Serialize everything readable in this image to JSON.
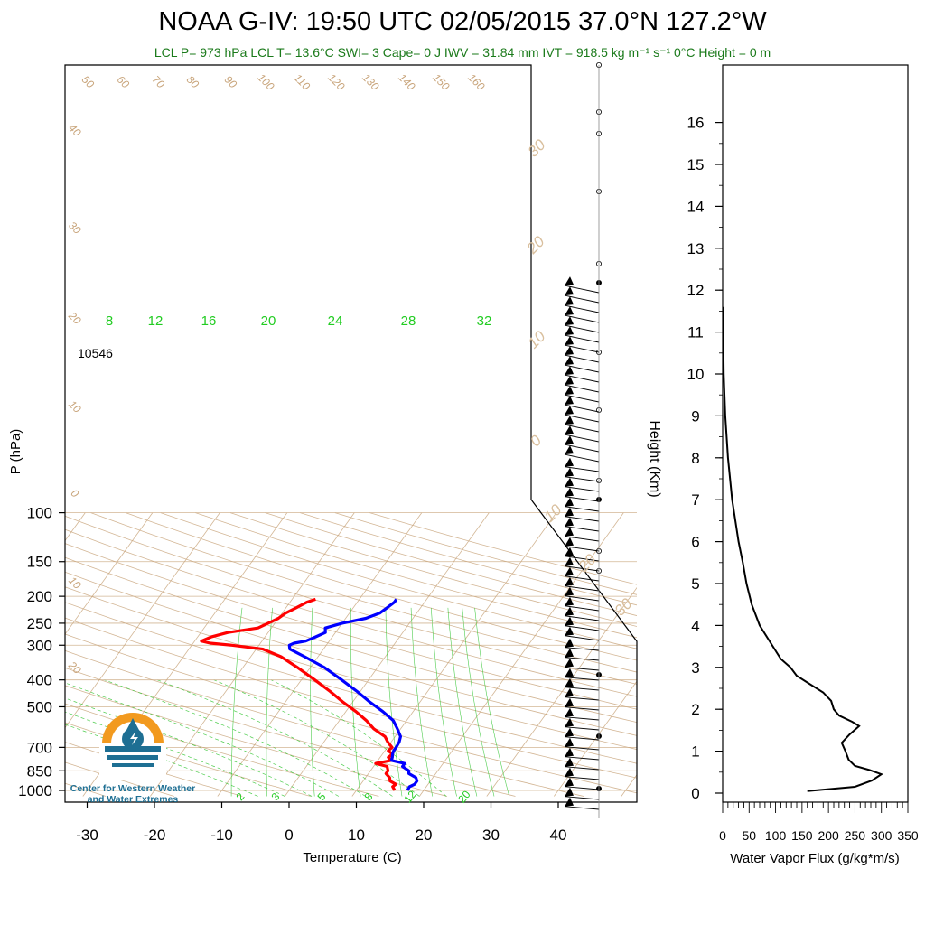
{
  "title": "NOAA G-IV: 19:50 UTC 02/05/2015  37.0°N 127.2°W",
  "subtitle": "LCL P= 973 hPa  LCL T= 13.6°C  SWI= 3  Cape= 0 J  IWV = 31.84 mm  IVT = 918.5 kg m⁻¹ s⁻¹  0°C Height = 0 m",
  "logo_text": [
    "Center for Western Weather",
    "and Water Extremes"
  ],
  "colors": {
    "temperature": "#ff0000",
    "dewpoint": "#0000ff",
    "mixing_ratio": "#22c022",
    "adiabat": "#c8a47a",
    "flux": "#000000",
    "logo_orange": "#f29a1f",
    "logo_blue": "#1e6f93"
  },
  "chart_data": [
    {
      "type": "line",
      "name": "skew-t",
      "xlabel": "Temperature (C)",
      "ylabel": "P (hPa)",
      "xlim": [
        -34,
        52
      ],
      "ylim": [
        1050,
        100
      ],
      "y_scale": "log",
      "x_ticks": [
        -30,
        -20,
        -10,
        0,
        10,
        20,
        30,
        40
      ],
      "y_ticks": [
        100,
        150,
        200,
        250,
        300,
        400,
        500,
        700,
        850,
        1000
      ],
      "annotation": "10546",
      "mixing_ratio_labels_top": [
        "8",
        "12",
        "16",
        "20",
        "24",
        "28",
        "32"
      ],
      "mixing_ratio_labels_bottom": [
        "2",
        "3",
        "5",
        "8",
        "12",
        "20"
      ],
      "theta_labels_top": [
        "50",
        "60",
        "70",
        "80",
        "90",
        "100",
        "110",
        "120",
        "130",
        "140",
        "150",
        "160"
      ],
      "theta_labels_left": [
        "40",
        "30",
        "20",
        "10",
        "0",
        "10",
        "20"
      ],
      "theta_e_labels_right": [
        "30",
        "20",
        "10",
        "0",
        "10",
        "20",
        "30"
      ],
      "series": [
        {
          "key": "temperature",
          "p": [
            1000,
            970,
            950,
            925,
            900,
            870,
            850,
            820,
            800,
            780,
            760,
            740,
            720,
            700,
            670,
            640,
            600,
            560,
            520,
            480,
            440,
            400,
            360,
            330,
            310,
            300,
            295,
            290,
            280,
            270,
            260,
            250,
            240,
            230,
            220,
            210,
            205
          ],
          "t": [
            15.7,
            15.0,
            15.2,
            14.0,
            13.6,
            12.6,
            12.6,
            12.0,
            10.0,
            12.0,
            11.2,
            11.5,
            10.5,
            10.7,
            9.5,
            8.5,
            6.0,
            4.0,
            1.5,
            -1.5,
            -4.5,
            -8.0,
            -12.0,
            -15.5,
            -19.0,
            -24.0,
            -27.5,
            -29.0,
            -28.0,
            -26.0,
            -22.0,
            -21.0,
            -20.0,
            -19.5,
            -18.5,
            -17.5,
            -16.5
          ]
        },
        {
          "key": "dewpoint",
          "p": [
            1000,
            970,
            950,
            925,
            900,
            870,
            850,
            820,
            800,
            780,
            760,
            740,
            720,
            700,
            670,
            640,
            600,
            560,
            520,
            480,
            440,
            400,
            360,
            330,
            310,
            300,
            295,
            290,
            280,
            270,
            260,
            250,
            240,
            230,
            220,
            210,
            205
          ],
          "t": [
            17.6,
            17.5,
            18.0,
            18.0,
            17.5,
            16.0,
            15.7,
            14.3,
            14.3,
            12.0,
            11.8,
            11.5,
            11.3,
            11.3,
            11.2,
            10.8,
            9.5,
            8.0,
            5.5,
            2.5,
            -0.5,
            -4.0,
            -8.0,
            -12.0,
            -15.0,
            -15.5,
            -15.0,
            -13.5,
            -12.5,
            -11.5,
            -12.0,
            -10.0,
            -7.0,
            -5.5,
            -5.0,
            -4.5,
            -4.5
          ]
        }
      ]
    },
    {
      "type": "line",
      "name": "water-vapor-flux",
      "xlabel": "Water Vapor Flux (g/kg*m/s)",
      "ylabel": "Height (Km)",
      "xlim": [
        0,
        350
      ],
      "ylim": [
        -0.2,
        16.4
      ],
      "x_ticks": [
        0,
        50,
        100,
        150,
        200,
        250,
        300,
        350
      ],
      "y_ticks": [
        0,
        1,
        2,
        3,
        4,
        5,
        6,
        7,
        8,
        9,
        10,
        11,
        12,
        13,
        14,
        15,
        16
      ],
      "series": [
        {
          "key": "flux",
          "height_km": [
            0.05,
            0.15,
            0.3,
            0.45,
            0.55,
            0.65,
            0.8,
            1.0,
            1.2,
            1.4,
            1.6,
            1.7,
            1.85,
            2.0,
            2.2,
            2.4,
            2.6,
            2.8,
            3.0,
            3.2,
            3.5,
            4.0,
            4.5,
            5.0,
            5.5,
            6.0,
            7.0,
            8.0,
            9.0,
            10.0,
            11.0,
            11.6
          ],
          "flux": [
            160,
            250,
            282,
            300,
            278,
            250,
            238,
            232,
            225,
            240,
            258,
            245,
            220,
            210,
            205,
            190,
            165,
            140,
            128,
            110,
            95,
            70,
            55,
            45,
            38,
            30,
            18,
            10,
            5,
            2,
            1,
            1
          ]
        }
      ]
    }
  ]
}
